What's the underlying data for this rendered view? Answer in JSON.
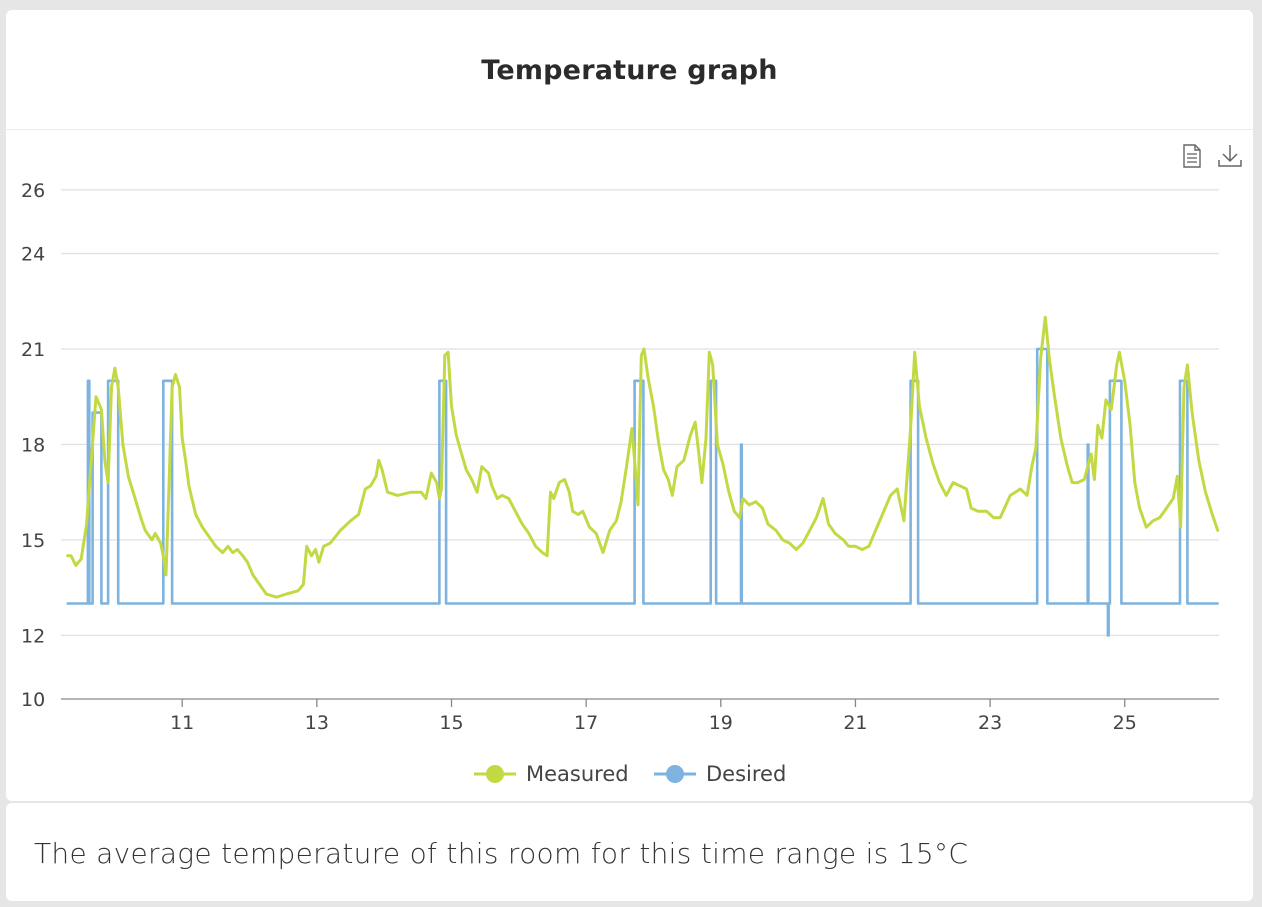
{
  "header": {
    "title": "Temperature graph"
  },
  "toolbar": {
    "icons": [
      "document-icon",
      "download-icon"
    ]
  },
  "chart_data": {
    "type": "line",
    "ylim": [
      10,
      26.5
    ],
    "y_ticks": [
      10,
      12,
      15,
      18,
      21,
      24,
      26
    ],
    "xlim": [
      9.2,
      26.4
    ],
    "x_ticks": [
      11,
      13,
      15,
      17,
      19,
      21,
      23,
      25
    ],
    "grid": true,
    "legend_position": "bottom-center",
    "series": [
      {
        "name": "Measured",
        "color": "#c3d944",
        "points": [
          [
            9.3,
            14.5
          ],
          [
            9.35,
            14.5
          ],
          [
            9.42,
            14.2
          ],
          [
            9.5,
            14.4
          ],
          [
            9.58,
            15.5
          ],
          [
            9.65,
            17.5
          ],
          [
            9.72,
            19.5
          ],
          [
            9.8,
            19.1
          ],
          [
            9.85,
            17.5
          ],
          [
            9.9,
            16.8
          ],
          [
            9.95,
            19.8
          ],
          [
            10.0,
            20.4
          ],
          [
            10.05,
            19.8
          ],
          [
            10.12,
            18.0
          ],
          [
            10.2,
            17.0
          ],
          [
            10.3,
            16.3
          ],
          [
            10.4,
            15.6
          ],
          [
            10.45,
            15.3
          ],
          [
            10.55,
            15.0
          ],
          [
            10.6,
            15.2
          ],
          [
            10.68,
            14.9
          ],
          [
            10.72,
            14.5
          ],
          [
            10.76,
            13.9
          ],
          [
            10.8,
            16.4
          ],
          [
            10.85,
            19.8
          ],
          [
            10.9,
            20.2
          ],
          [
            10.96,
            19.8
          ],
          [
            11.0,
            18.2
          ],
          [
            11.05,
            17.5
          ],
          [
            11.1,
            16.7
          ],
          [
            11.2,
            15.8
          ],
          [
            11.3,
            15.4
          ],
          [
            11.4,
            15.1
          ],
          [
            11.5,
            14.8
          ],
          [
            11.6,
            14.6
          ],
          [
            11.68,
            14.8
          ],
          [
            11.75,
            14.6
          ],
          [
            11.82,
            14.7
          ],
          [
            11.9,
            14.5
          ],
          [
            11.97,
            14.3
          ],
          [
            12.05,
            13.9
          ],
          [
            12.15,
            13.6
          ],
          [
            12.25,
            13.3
          ],
          [
            12.4,
            13.2
          ],
          [
            12.55,
            13.3
          ],
          [
            12.72,
            13.4
          ],
          [
            12.8,
            13.6
          ],
          [
            12.85,
            14.8
          ],
          [
            12.92,
            14.5
          ],
          [
            12.98,
            14.7
          ],
          [
            13.03,
            14.3
          ],
          [
            13.1,
            14.8
          ],
          [
            13.2,
            14.9
          ],
          [
            13.35,
            15.3
          ],
          [
            13.5,
            15.6
          ],
          [
            13.62,
            15.8
          ],
          [
            13.72,
            16.6
          ],
          [
            13.8,
            16.7
          ],
          [
            13.88,
            17.0
          ],
          [
            13.92,
            17.5
          ],
          [
            13.97,
            17.2
          ],
          [
            14.05,
            16.5
          ],
          [
            14.2,
            16.4
          ],
          [
            14.4,
            16.5
          ],
          [
            14.55,
            16.5
          ],
          [
            14.62,
            16.3
          ],
          [
            14.7,
            17.1
          ],
          [
            14.78,
            16.8
          ],
          [
            14.82,
            16.3
          ],
          [
            14.85,
            16.6
          ],
          [
            14.9,
            20.8
          ],
          [
            14.95,
            20.9
          ],
          [
            15.0,
            19.2
          ],
          [
            15.07,
            18.3
          ],
          [
            15.15,
            17.7
          ],
          [
            15.22,
            17.2
          ],
          [
            15.3,
            16.9
          ],
          [
            15.38,
            16.5
          ],
          [
            15.45,
            17.3
          ],
          [
            15.55,
            17.1
          ],
          [
            15.6,
            16.7
          ],
          [
            15.68,
            16.3
          ],
          [
            15.75,
            16.4
          ],
          [
            15.85,
            16.3
          ],
          [
            15.95,
            15.9
          ],
          [
            16.05,
            15.5
          ],
          [
            16.15,
            15.2
          ],
          [
            16.25,
            14.8
          ],
          [
            16.35,
            14.6
          ],
          [
            16.42,
            14.5
          ],
          [
            16.47,
            16.5
          ],
          [
            16.52,
            16.3
          ],
          [
            16.6,
            16.8
          ],
          [
            16.68,
            16.9
          ],
          [
            16.75,
            16.5
          ],
          [
            16.8,
            15.9
          ],
          [
            16.88,
            15.8
          ],
          [
            16.95,
            15.9
          ],
          [
            17.05,
            15.4
          ],
          [
            17.15,
            15.2
          ],
          [
            17.25,
            14.6
          ],
          [
            17.35,
            15.3
          ],
          [
            17.45,
            15.6
          ],
          [
            17.52,
            16.2
          ],
          [
            17.6,
            17.3
          ],
          [
            17.68,
            18.5
          ],
          [
            17.72,
            17.5
          ],
          [
            17.77,
            16.1
          ],
          [
            17.82,
            20.8
          ],
          [
            17.86,
            21.0
          ],
          [
            17.92,
            20.1
          ],
          [
            18.0,
            19.2
          ],
          [
            18.08,
            18.0
          ],
          [
            18.15,
            17.2
          ],
          [
            18.22,
            16.9
          ],
          [
            18.28,
            16.4
          ],
          [
            18.35,
            17.3
          ],
          [
            18.45,
            17.5
          ],
          [
            18.55,
            18.3
          ],
          [
            18.62,
            18.7
          ],
          [
            18.68,
            17.6
          ],
          [
            18.72,
            16.8
          ],
          [
            18.78,
            18.2
          ],
          [
            18.83,
            20.9
          ],
          [
            18.88,
            20.5
          ],
          [
            18.95,
            18.0
          ],
          [
            19.03,
            17.4
          ],
          [
            19.12,
            16.5
          ],
          [
            19.2,
            15.9
          ],
          [
            19.28,
            15.7
          ],
          [
            19.33,
            16.3
          ],
          [
            19.42,
            16.1
          ],
          [
            19.52,
            16.2
          ],
          [
            19.62,
            16.0
          ],
          [
            19.7,
            15.5
          ],
          [
            19.82,
            15.3
          ],
          [
            19.92,
            15.0
          ],
          [
            20.02,
            14.9
          ],
          [
            20.12,
            14.7
          ],
          [
            20.22,
            14.9
          ],
          [
            20.32,
            15.3
          ],
          [
            20.42,
            15.7
          ],
          [
            20.52,
            16.3
          ],
          [
            20.6,
            15.5
          ],
          [
            20.7,
            15.2
          ],
          [
            20.82,
            15.0
          ],
          [
            20.9,
            14.8
          ],
          [
            21.0,
            14.8
          ],
          [
            21.1,
            14.7
          ],
          [
            21.2,
            14.8
          ],
          [
            21.3,
            15.3
          ],
          [
            21.4,
            15.8
          ],
          [
            21.52,
            16.4
          ],
          [
            21.62,
            16.6
          ],
          [
            21.72,
            15.6
          ],
          [
            21.82,
            18.5
          ],
          [
            21.88,
            20.9
          ],
          [
            21.95,
            19.2
          ],
          [
            22.05,
            18.2
          ],
          [
            22.15,
            17.4
          ],
          [
            22.25,
            16.8
          ],
          [
            22.35,
            16.4
          ],
          [
            22.45,
            16.8
          ],
          [
            22.55,
            16.7
          ],
          [
            22.65,
            16.6
          ],
          [
            22.72,
            16.0
          ],
          [
            22.82,
            15.9
          ],
          [
            22.95,
            15.9
          ],
          [
            23.05,
            15.7
          ],
          [
            23.15,
            15.7
          ],
          [
            23.3,
            16.4
          ],
          [
            23.45,
            16.6
          ],
          [
            23.55,
            16.4
          ],
          [
            23.62,
            17.3
          ],
          [
            23.68,
            17.9
          ],
          [
            23.75,
            20.7
          ],
          [
            23.82,
            22.0
          ],
          [
            23.88,
            20.7
          ],
          [
            23.95,
            19.6
          ],
          [
            24.05,
            18.2
          ],
          [
            24.15,
            17.3
          ],
          [
            24.22,
            16.8
          ],
          [
            24.3,
            16.8
          ],
          [
            24.4,
            16.9
          ],
          [
            24.5,
            17.7
          ],
          [
            24.55,
            16.9
          ],
          [
            24.6,
            18.6
          ],
          [
            24.66,
            18.2
          ],
          [
            24.72,
            19.4
          ],
          [
            24.8,
            19.1
          ],
          [
            24.88,
            20.5
          ],
          [
            24.92,
            20.9
          ],
          [
            25.0,
            20.0
          ],
          [
            25.08,
            18.6
          ],
          [
            25.15,
            16.8
          ],
          [
            25.22,
            16.0
          ],
          [
            25.32,
            15.4
          ],
          [
            25.42,
            15.6
          ],
          [
            25.52,
            15.7
          ],
          [
            25.62,
            16.0
          ],
          [
            25.72,
            16.3
          ],
          [
            25.78,
            17.0
          ],
          [
            25.83,
            15.4
          ],
          [
            25.88,
            19.8
          ],
          [
            25.93,
            20.5
          ],
          [
            26.0,
            19.0
          ],
          [
            26.1,
            17.5
          ],
          [
            26.2,
            16.5
          ],
          [
            26.3,
            15.8
          ],
          [
            26.38,
            15.3
          ]
        ]
      },
      {
        "name": "Desired",
        "color": "#7db3de",
        "points": [
          [
            9.3,
            13
          ],
          [
            9.6,
            13
          ],
          [
            9.6,
            20
          ],
          [
            9.62,
            20
          ],
          [
            9.62,
            13
          ],
          [
            9.67,
            13
          ],
          [
            9.67,
            19
          ],
          [
            9.8,
            19
          ],
          [
            9.8,
            13
          ],
          [
            9.9,
            13
          ],
          [
            9.9,
            20
          ],
          [
            10.05,
            20
          ],
          [
            10.05,
            13
          ],
          [
            10.72,
            13
          ],
          [
            10.72,
            20
          ],
          [
            10.85,
            20
          ],
          [
            10.85,
            13
          ],
          [
            14.82,
            13
          ],
          [
            14.82,
            20
          ],
          [
            14.92,
            20
          ],
          [
            14.92,
            13
          ],
          [
            17.72,
            13
          ],
          [
            17.72,
            20
          ],
          [
            17.85,
            20
          ],
          [
            17.85,
            13
          ],
          [
            18.85,
            13
          ],
          [
            18.85,
            20
          ],
          [
            18.93,
            20
          ],
          [
            18.93,
            13
          ],
          [
            19.3,
            13
          ],
          [
            19.3,
            18
          ],
          [
            19.31,
            18
          ],
          [
            19.31,
            13
          ],
          [
            21.82,
            13
          ],
          [
            21.82,
            20
          ],
          [
            21.93,
            20
          ],
          [
            21.93,
            13
          ],
          [
            23.7,
            13
          ],
          [
            23.7,
            21
          ],
          [
            23.85,
            21
          ],
          [
            23.85,
            13
          ],
          [
            24.45,
            13
          ],
          [
            24.45,
            18
          ],
          [
            24.46,
            18
          ],
          [
            24.46,
            13
          ],
          [
            24.75,
            13
          ],
          [
            24.75,
            12
          ],
          [
            24.76,
            12
          ],
          [
            24.76,
            13
          ],
          [
            24.78,
            13
          ],
          [
            24.78,
            20
          ],
          [
            24.95,
            20
          ],
          [
            24.95,
            13
          ],
          [
            25.82,
            13
          ],
          [
            25.82,
            20
          ],
          [
            25.93,
            20
          ],
          [
            25.93,
            13
          ],
          [
            26.38,
            13
          ]
        ]
      }
    ]
  },
  "footer": {
    "text": "The average temperature of this room for this time range is 15°C"
  }
}
